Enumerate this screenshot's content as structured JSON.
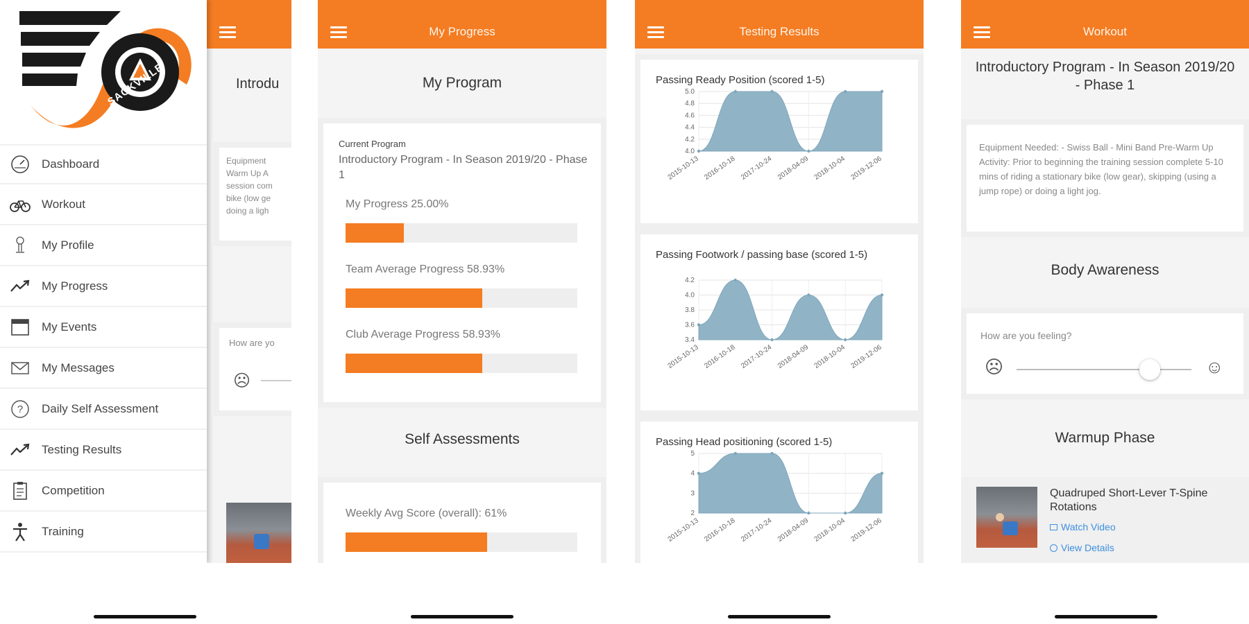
{
  "colors": {
    "accent": "#f47c22",
    "chart_fill": "#90b4c6"
  },
  "sidebar": {
    "logo_text": "SACKVILLE",
    "items": [
      {
        "label": "Dashboard",
        "icon": "dashboard-icon"
      },
      {
        "label": "Workout",
        "icon": "bicycle-icon"
      },
      {
        "label": "My Profile",
        "icon": "profile-icon"
      },
      {
        "label": "My Progress",
        "icon": "trend-up-icon"
      },
      {
        "label": "My Events",
        "icon": "calendar-icon"
      },
      {
        "label": "My Messages",
        "icon": "envelope-icon"
      },
      {
        "label": "Daily Self Assessment",
        "icon": "question-icon"
      },
      {
        "label": "Testing Results",
        "icon": "trend-up-icon"
      },
      {
        "label": "Competition",
        "icon": "clipboard-icon"
      },
      {
        "label": "Training",
        "icon": "person-icon"
      }
    ],
    "behind": {
      "title_partial": "Introdu",
      "equipment_lines": [
        "Equipment",
        "Warm Up A",
        "session com",
        "bike (low ge",
        "doing a ligh"
      ],
      "feeling_partial": "How are yo"
    }
  },
  "progress": {
    "header_title": "My Progress",
    "section_title": "My Program",
    "current_label": "Current Program",
    "program_name": "Introductory Program - In Season 2019/20 - Phase 1",
    "bars": [
      {
        "label": "My Progress 25.00%",
        "value": 25.0
      },
      {
        "label": "Team Average Progress 58.93%",
        "value": 58.93
      },
      {
        "label": "Club Average Progress 58.93%",
        "value": 58.93
      }
    ],
    "self_title": "Self Assessments",
    "weekly": {
      "label": "Weekly Avg Score (overall): 61%",
      "value": 61
    }
  },
  "testing": {
    "header_title": "Testing Results",
    "charts": [
      {
        "title": "Passing Ready Position (scored 1-5)",
        "type": "area",
        "x": [
          "2015-10-13",
          "2016-10-18",
          "2017-10-24",
          "2018-04-09",
          "2018-10-04",
          "2019-12-06"
        ],
        "values": [
          4.0,
          5.0,
          5.0,
          4.0,
          5.0,
          5.0
        ],
        "yticks": [
          "5.0",
          "4.8",
          "4.6",
          "4.4",
          "4.2",
          "4.0"
        ],
        "ylim": [
          4.0,
          5.0
        ]
      },
      {
        "title": "Passing Footwork / passing base (scored 1-5)",
        "type": "area",
        "x": [
          "2015-10-13",
          "2016-10-18",
          "2017-10-24",
          "2018-04-09",
          "2018-10-04",
          "2019-12-06"
        ],
        "values": [
          3.6,
          4.2,
          3.4,
          4.0,
          3.4,
          4.0
        ],
        "yticks": [
          "4.2",
          "4.0",
          "3.8",
          "3.6",
          "3.4"
        ],
        "ylim": [
          3.4,
          4.2
        ]
      },
      {
        "title": "Passing Head positioning (scored 1-5)",
        "type": "area",
        "x": [
          "2015-10-13",
          "2016-10-18",
          "2017-10-24",
          "2018-04-09",
          "2018-10-04",
          "2019-12-06"
        ],
        "values": [
          4,
          5,
          5,
          2,
          2,
          4
        ],
        "yticks": [
          "5",
          "4",
          "3",
          "2"
        ],
        "ylim": [
          2,
          5
        ]
      }
    ]
  },
  "workout": {
    "header_title": "Workout",
    "program_title": "Introductory Program - In Season 2019/20 - Phase 1",
    "equipment_text": "Equipment Needed: - Swiss Ball - Mini Band Pre-Warm Up Activity: Prior to beginning the training session complete 5-10 mins of riding a stationary bike (low gear), skipping (using a jump rope) or doing a light jog.",
    "section_title": "Body Awareness",
    "feeling_label": "How are you feeling?",
    "feeling_value": 0.76,
    "warmup_title": "Warmup Phase",
    "exercise": {
      "name": "Quadruped Short-Lever T-Spine Rotations",
      "watch_label": "Watch Video",
      "details_label": "View Details"
    }
  }
}
